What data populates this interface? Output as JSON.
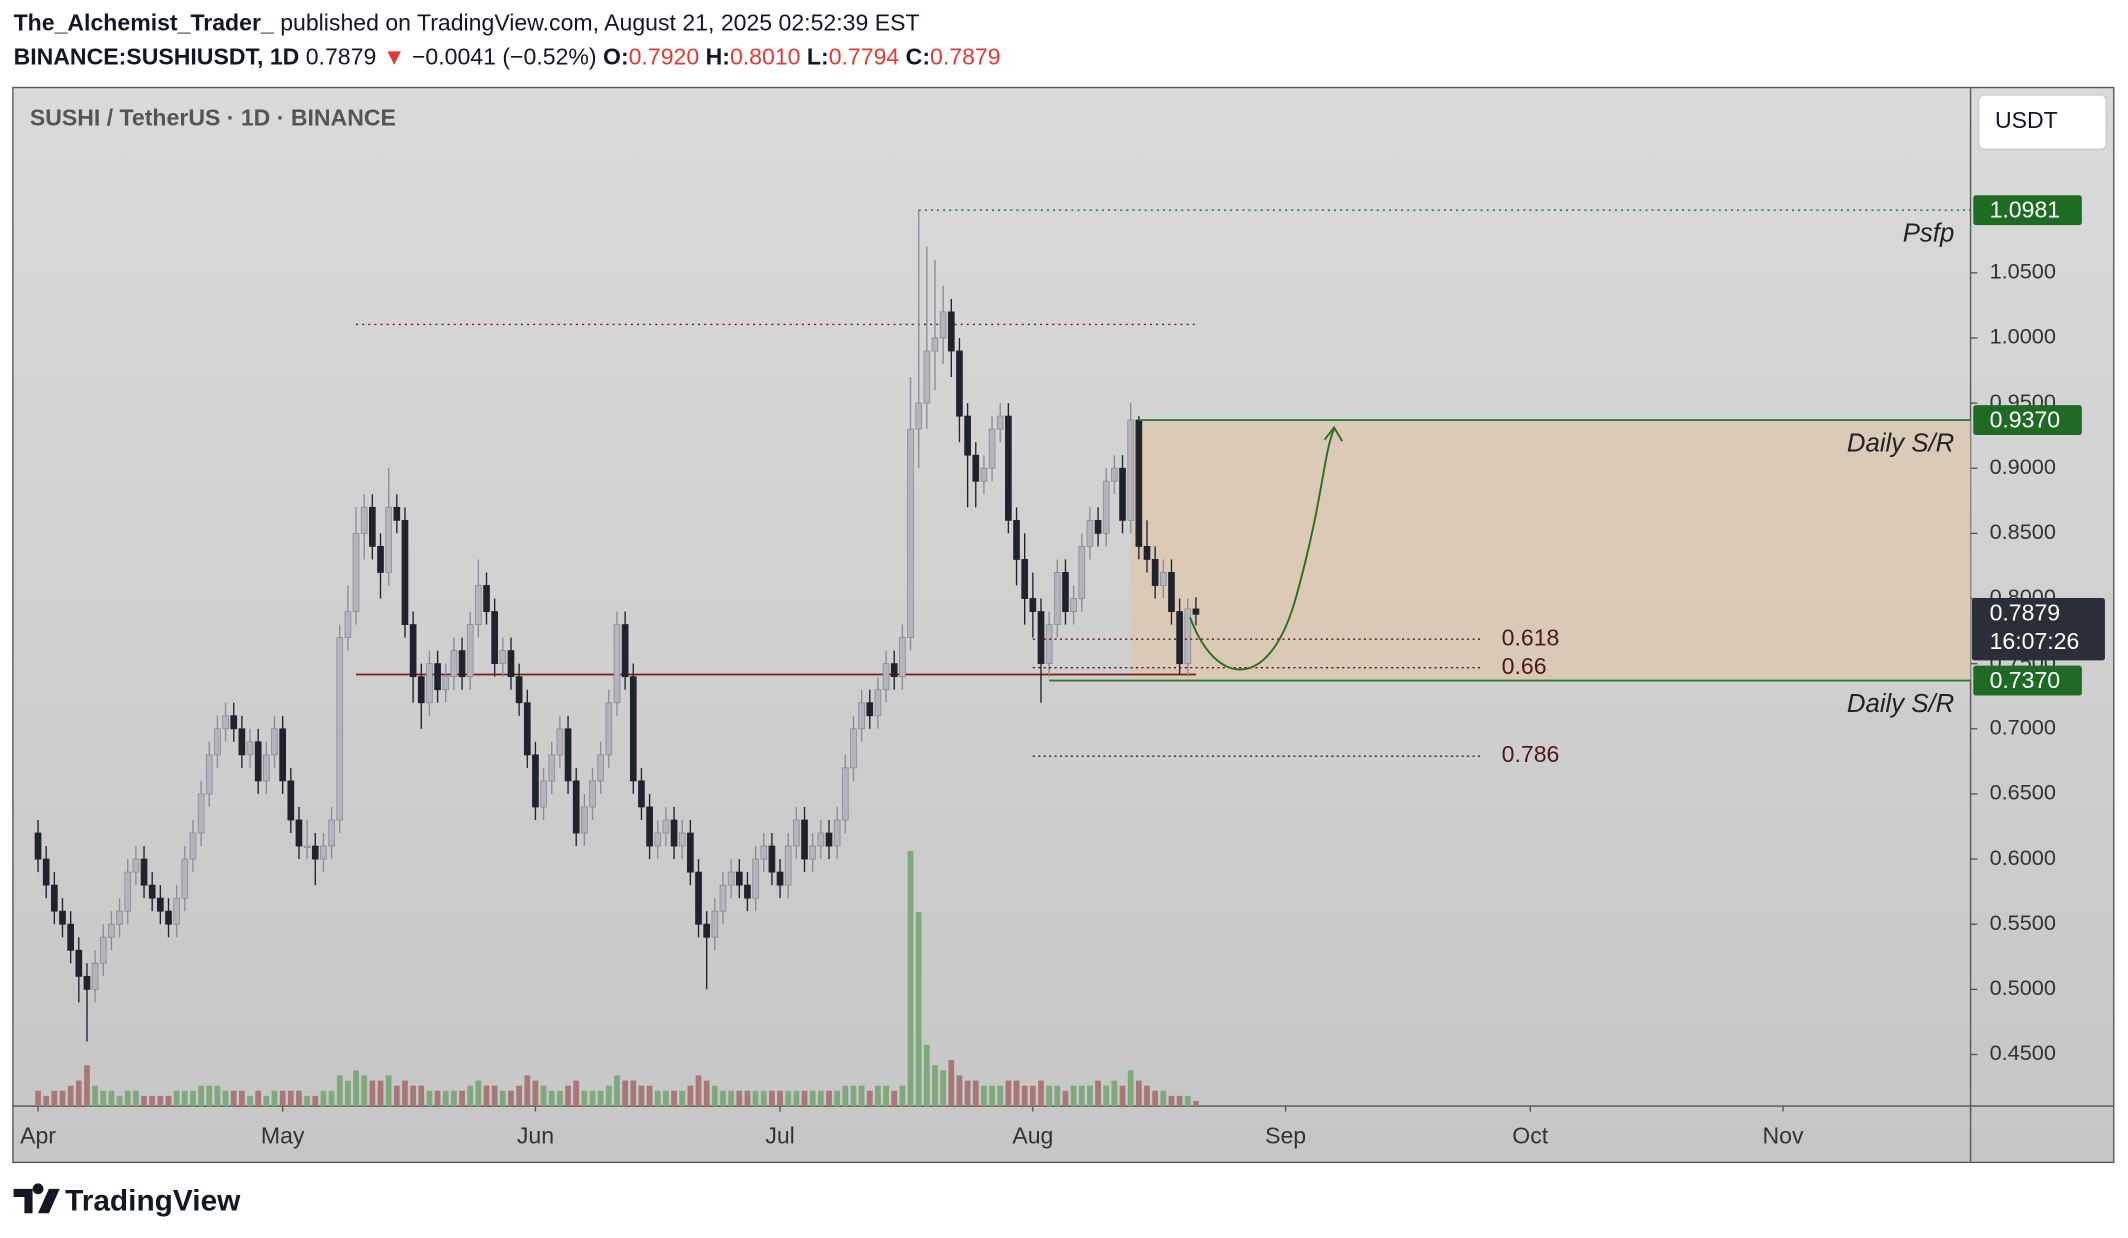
{
  "header": {
    "author": "The_Alchemist_Trader_",
    "published": "published on TradingView.com, August 21, 2025 02:52:39 EST",
    "symbol": "BINANCE:SUSHIUSDT, 1D",
    "last": "0.7879",
    "arrow": "▼",
    "change": "−0.0041 (−0.52%)",
    "o_label": "O:",
    "open": "0.7920",
    "h_label": "H:",
    "high": "0.8010",
    "l_label": "L:",
    "low": "0.7794",
    "c_label": "C:",
    "close": "0.7879"
  },
  "footer": {
    "brand": "TradingView"
  },
  "chart_data": {
    "type": "candlestick",
    "title": "SUSHI / TetherUS · 1D · BINANCE",
    "currency": "USDT",
    "up_color": "#b4b4bc",
    "down_color": "#20232c",
    "volume_up_color": "#7fa87c",
    "volume_down_color": "#a87878",
    "xlim": [
      -3,
      237
    ],
    "xticks": [
      {
        "value": 0,
        "label": "Apr"
      },
      {
        "value": 30,
        "label": "May"
      },
      {
        "value": 61,
        "label": "Jun"
      },
      {
        "value": 91,
        "label": "Jul"
      },
      {
        "value": 122,
        "label": "Aug"
      },
      {
        "value": 153,
        "label": "Sep"
      },
      {
        "value": 183,
        "label": "Oct"
      },
      {
        "value": 214,
        "label": "Nov"
      }
    ],
    "ylim": [
      0.4104,
      1.1917
    ],
    "yticks": [
      {
        "value": 0.45,
        "label": "0.4500"
      },
      {
        "value": 0.5,
        "label": "0.5000"
      },
      {
        "value": 0.55,
        "label": "0.5500"
      },
      {
        "value": 0.6,
        "label": "0.6000"
      },
      {
        "value": 0.65,
        "label": "0.6500"
      },
      {
        "value": 0.7,
        "label": "0.7000"
      },
      {
        "value": 0.75,
        "label": "0.7500"
      },
      {
        "value": 0.8,
        "label": "0.8000"
      },
      {
        "value": 0.85,
        "label": "0.8500"
      },
      {
        "value": 0.9,
        "label": "0.9000"
      },
      {
        "value": 0.95,
        "label": "0.9500"
      },
      {
        "value": 1.0,
        "label": "1.0000"
      },
      {
        "value": 1.05,
        "label": "1.0500"
      }
    ],
    "ohlc": [
      [
        0.62,
        0.63,
        0.59,
        0.6
      ],
      [
        0.6,
        0.61,
        0.57,
        0.58
      ],
      [
        0.58,
        0.59,
        0.55,
        0.56
      ],
      [
        0.56,
        0.57,
        0.54,
        0.55
      ],
      [
        0.55,
        0.56,
        0.52,
        0.53
      ],
      [
        0.53,
        0.54,
        0.49,
        0.51
      ],
      [
        0.51,
        0.52,
        0.46,
        0.5
      ],
      [
        0.5,
        0.53,
        0.49,
        0.52
      ],
      [
        0.52,
        0.55,
        0.51,
        0.54
      ],
      [
        0.54,
        0.56,
        0.53,
        0.55
      ],
      [
        0.55,
        0.57,
        0.54,
        0.56
      ],
      [
        0.56,
        0.6,
        0.55,
        0.59
      ],
      [
        0.59,
        0.61,
        0.58,
        0.6
      ],
      [
        0.6,
        0.61,
        0.57,
        0.58
      ],
      [
        0.58,
        0.59,
        0.56,
        0.57
      ],
      [
        0.57,
        0.58,
        0.55,
        0.56
      ],
      [
        0.56,
        0.57,
        0.54,
        0.55
      ],
      [
        0.55,
        0.58,
        0.54,
        0.57
      ],
      [
        0.57,
        0.61,
        0.56,
        0.6
      ],
      [
        0.6,
        0.63,
        0.59,
        0.62
      ],
      [
        0.62,
        0.66,
        0.61,
        0.65
      ],
      [
        0.65,
        0.69,
        0.64,
        0.68
      ],
      [
        0.68,
        0.71,
        0.67,
        0.7
      ],
      [
        0.7,
        0.72,
        0.69,
        0.71
      ],
      [
        0.71,
        0.72,
        0.69,
        0.7
      ],
      [
        0.7,
        0.71,
        0.67,
        0.68
      ],
      [
        0.68,
        0.7,
        0.67,
        0.69
      ],
      [
        0.69,
        0.7,
        0.65,
        0.66
      ],
      [
        0.66,
        0.69,
        0.65,
        0.68
      ],
      [
        0.68,
        0.71,
        0.67,
        0.7
      ],
      [
        0.7,
        0.71,
        0.65,
        0.66
      ],
      [
        0.66,
        0.67,
        0.62,
        0.63
      ],
      [
        0.63,
        0.64,
        0.6,
        0.61
      ],
      [
        0.61,
        0.63,
        0.6,
        0.61
      ],
      [
        0.61,
        0.62,
        0.58,
        0.6
      ],
      [
        0.6,
        0.62,
        0.59,
        0.61
      ],
      [
        0.61,
        0.64,
        0.6,
        0.63
      ],
      [
        0.63,
        0.78,
        0.62,
        0.77
      ],
      [
        0.77,
        0.81,
        0.76,
        0.79
      ],
      [
        0.79,
        0.87,
        0.78,
        0.85
      ],
      [
        0.85,
        0.88,
        0.83,
        0.87
      ],
      [
        0.87,
        0.88,
        0.83,
        0.84
      ],
      [
        0.84,
        0.85,
        0.8,
        0.82
      ],
      [
        0.82,
        0.9,
        0.81,
        0.87
      ],
      [
        0.87,
        0.88,
        0.85,
        0.86
      ],
      [
        0.86,
        0.87,
        0.77,
        0.78
      ],
      [
        0.78,
        0.79,
        0.72,
        0.74
      ],
      [
        0.74,
        0.75,
        0.7,
        0.72
      ],
      [
        0.72,
        0.76,
        0.71,
        0.75
      ],
      [
        0.75,
        0.76,
        0.72,
        0.73
      ],
      [
        0.73,
        0.75,
        0.72,
        0.74
      ],
      [
        0.74,
        0.77,
        0.73,
        0.76
      ],
      [
        0.76,
        0.77,
        0.73,
        0.74
      ],
      [
        0.74,
        0.79,
        0.73,
        0.78
      ],
      [
        0.78,
        0.83,
        0.77,
        0.81
      ],
      [
        0.81,
        0.82,
        0.78,
        0.79
      ],
      [
        0.79,
        0.8,
        0.74,
        0.75
      ],
      [
        0.75,
        0.77,
        0.74,
        0.76
      ],
      [
        0.76,
        0.77,
        0.73,
        0.74
      ],
      [
        0.74,
        0.75,
        0.71,
        0.72
      ],
      [
        0.72,
        0.73,
        0.67,
        0.68
      ],
      [
        0.68,
        0.69,
        0.63,
        0.64
      ],
      [
        0.64,
        0.67,
        0.63,
        0.66
      ],
      [
        0.66,
        0.69,
        0.65,
        0.68
      ],
      [
        0.68,
        0.71,
        0.67,
        0.7
      ],
      [
        0.7,
        0.71,
        0.65,
        0.66
      ],
      [
        0.66,
        0.67,
        0.61,
        0.62
      ],
      [
        0.62,
        0.65,
        0.61,
        0.64
      ],
      [
        0.64,
        0.67,
        0.63,
        0.66
      ],
      [
        0.66,
        0.69,
        0.65,
        0.68
      ],
      [
        0.68,
        0.73,
        0.67,
        0.72
      ],
      [
        0.72,
        0.79,
        0.71,
        0.78
      ],
      [
        0.78,
        0.79,
        0.73,
        0.74
      ],
      [
        0.74,
        0.75,
        0.65,
        0.66
      ],
      [
        0.66,
        0.67,
        0.63,
        0.64
      ],
      [
        0.64,
        0.65,
        0.6,
        0.61
      ],
      [
        0.61,
        0.63,
        0.6,
        0.62
      ],
      [
        0.62,
        0.64,
        0.61,
        0.63
      ],
      [
        0.63,
        0.64,
        0.6,
        0.61
      ],
      [
        0.61,
        0.63,
        0.6,
        0.62
      ],
      [
        0.62,
        0.63,
        0.58,
        0.59
      ],
      [
        0.59,
        0.6,
        0.54,
        0.55
      ],
      [
        0.55,
        0.56,
        0.5,
        0.54
      ],
      [
        0.54,
        0.57,
        0.53,
        0.56
      ],
      [
        0.56,
        0.59,
        0.55,
        0.58
      ],
      [
        0.58,
        0.6,
        0.57,
        0.59
      ],
      [
        0.59,
        0.6,
        0.57,
        0.58
      ],
      [
        0.58,
        0.59,
        0.56,
        0.57
      ],
      [
        0.57,
        0.61,
        0.56,
        0.6
      ],
      [
        0.6,
        0.62,
        0.59,
        0.61
      ],
      [
        0.61,
        0.62,
        0.58,
        0.59
      ],
      [
        0.59,
        0.6,
        0.57,
        0.58
      ],
      [
        0.58,
        0.62,
        0.57,
        0.61
      ],
      [
        0.61,
        0.64,
        0.6,
        0.63
      ],
      [
        0.63,
        0.64,
        0.59,
        0.6
      ],
      [
        0.6,
        0.62,
        0.59,
        0.61
      ],
      [
        0.61,
        0.63,
        0.6,
        0.62
      ],
      [
        0.62,
        0.63,
        0.6,
        0.61
      ],
      [
        0.61,
        0.64,
        0.6,
        0.63
      ],
      [
        0.63,
        0.68,
        0.62,
        0.67
      ],
      [
        0.67,
        0.71,
        0.66,
        0.7
      ],
      [
        0.7,
        0.73,
        0.69,
        0.72
      ],
      [
        0.72,
        0.73,
        0.7,
        0.71
      ],
      [
        0.71,
        0.74,
        0.7,
        0.73
      ],
      [
        0.73,
        0.76,
        0.72,
        0.75
      ],
      [
        0.75,
        0.76,
        0.73,
        0.74
      ],
      [
        0.74,
        0.78,
        0.73,
        0.77
      ],
      [
        0.77,
        0.97,
        0.76,
        0.93
      ],
      [
        0.93,
        1.0981,
        0.9,
        0.95
      ],
      [
        0.95,
        1.07,
        0.93,
        0.99
      ],
      [
        0.99,
        1.06,
        0.96,
        1.0
      ],
      [
        1.0,
        1.04,
        0.98,
        1.02
      ],
      [
        1.02,
        1.03,
        0.97,
        0.99
      ],
      [
        0.99,
        1.0,
        0.92,
        0.94
      ],
      [
        0.94,
        0.95,
        0.87,
        0.91
      ],
      [
        0.91,
        0.92,
        0.87,
        0.89
      ],
      [
        0.89,
        0.91,
        0.88,
        0.9
      ],
      [
        0.9,
        0.94,
        0.89,
        0.93
      ],
      [
        0.93,
        0.95,
        0.92,
        0.94
      ],
      [
        0.94,
        0.95,
        0.85,
        0.86
      ],
      [
        0.86,
        0.87,
        0.81,
        0.83
      ],
      [
        0.83,
        0.85,
        0.78,
        0.8
      ],
      [
        0.8,
        0.82,
        0.77,
        0.79
      ],
      [
        0.79,
        0.8,
        0.72,
        0.75
      ],
      [
        0.75,
        0.79,
        0.74,
        0.78
      ],
      [
        0.78,
        0.83,
        0.77,
        0.82
      ],
      [
        0.82,
        0.83,
        0.78,
        0.79
      ],
      [
        0.79,
        0.81,
        0.78,
        0.8
      ],
      [
        0.8,
        0.85,
        0.79,
        0.84
      ],
      [
        0.84,
        0.87,
        0.83,
        0.86
      ],
      [
        0.86,
        0.87,
        0.84,
        0.85
      ],
      [
        0.85,
        0.9,
        0.84,
        0.89
      ],
      [
        0.89,
        0.91,
        0.88,
        0.9
      ],
      [
        0.9,
        0.91,
        0.85,
        0.86
      ],
      [
        0.86,
        0.95,
        0.85,
        0.937
      ],
      [
        0.937,
        0.94,
        0.83,
        0.84
      ],
      [
        0.84,
        0.86,
        0.82,
        0.83
      ],
      [
        0.83,
        0.84,
        0.8,
        0.81
      ],
      [
        0.81,
        0.83,
        0.8,
        0.82
      ],
      [
        0.82,
        0.83,
        0.78,
        0.79
      ],
      [
        0.79,
        0.8,
        0.742,
        0.75
      ],
      [
        0.75,
        0.8,
        0.74,
        0.792
      ],
      [
        0.792,
        0.801,
        0.7794,
        0.7879
      ]
    ],
    "volume": [
      3,
      2,
      3,
      3,
      4,
      5,
      8,
      4,
      3,
      3,
      2,
      3,
      3,
      2,
      2,
      2,
      2,
      3,
      3,
      3,
      4,
      4,
      4,
      3,
      3,
      3,
      2,
      3,
      2,
      3,
      3,
      3,
      3,
      2,
      2,
      3,
      3,
      6,
      5,
      7,
      6,
      5,
      5,
      6,
      4,
      5,
      4,
      4,
      3,
      3,
      3,
      3,
      3,
      4,
      5,
      4,
      4,
      3,
      3,
      4,
      6,
      5,
      4,
      3,
      3,
      4,
      5,
      3,
      3,
      3,
      4,
      6,
      5,
      5,
      4,
      4,
      3,
      3,
      3,
      3,
      4,
      6,
      5,
      4,
      3,
      3,
      3,
      3,
      3,
      3,
      3,
      3,
      3,
      3,
      3,
      3,
      3,
      3,
      3,
      4,
      4,
      4,
      3,
      4,
      4,
      3,
      4,
      50,
      38,
      12,
      8,
      7,
      9,
      6,
      5,
      5,
      4,
      4,
      4,
      5,
      5,
      4,
      4,
      5,
      4,
      4,
      3,
      4,
      4,
      4,
      5,
      4,
      5,
      4,
      7,
      5,
      4,
      3,
      3,
      2,
      2,
      2,
      1
    ],
    "levels": [
      {
        "value": 1.0981,
        "label": "1.0981",
        "from": 108,
        "text": "Psfp",
        "color": "#1e6b24"
      }
    ],
    "zone": {
      "color": "#dcc7ad",
      "line_color": "#2f7d32",
      "from": 134,
      "high": {
        "value": 0.937,
        "label": "0.9370",
        "from": 135,
        "text": "Daily S/R"
      },
      "low": {
        "value": 0.737,
        "label": "0.7370",
        "from": 124,
        "text": "Daily S/R"
      }
    },
    "fibs": [
      {
        "value": 0.7688,
        "label": "0.618",
        "from": 122,
        "to": 177
      },
      {
        "value": 0.7469,
        "label": "0.66",
        "from": 122,
        "to": 177
      },
      {
        "value": 0.679,
        "label": "0.786",
        "from": 122,
        "to": 177
      }
    ],
    "profile_lines": [
      {
        "value": 1.0104,
        "from": 39,
        "to": 142,
        "style": "dotted"
      },
      {
        "value": 0.7417,
        "from": 39,
        "to": 142,
        "style": "solid"
      }
    ],
    "last_price": {
      "value": 0.7879,
      "label": "0.7879",
      "countdown": "16:07:26"
    }
  }
}
